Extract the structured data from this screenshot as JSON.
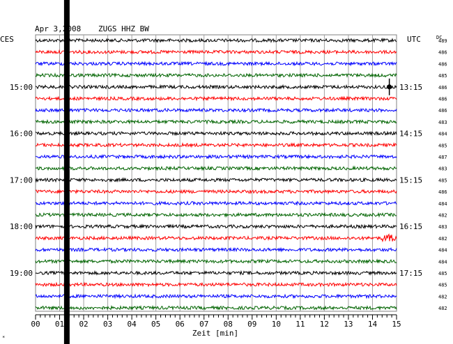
{
  "header": {
    "date": "Apr 3,2008",
    "station": "ZUGS HHZ BW",
    "left_zone": "CES",
    "right_zone": "UTC",
    "dc_label": "DC"
  },
  "footer": {
    "xlabel": "Zeit [min]",
    "corner_mark": "*"
  },
  "chart_data": {
    "type": "line",
    "title": "Apr 3,2008   ZUGS HHZ BW",
    "xlabel": "Zeit [min]",
    "xlim": [
      0,
      15
    ],
    "x_ticks": [
      "00",
      "01",
      "02",
      "03",
      "04",
      "05",
      "06",
      "07",
      "08",
      "09",
      "10",
      "11",
      "12",
      "13",
      "14",
      "15"
    ],
    "trace_count": 24,
    "trace_colors": [
      "#000000",
      "#ff0000",
      "#0000ff",
      "#006400"
    ],
    "left_time_labels": [
      {
        "trace": 4,
        "label": "15:00"
      },
      {
        "trace": 8,
        "label": "16:00"
      },
      {
        "trace": 12,
        "label": "17:00"
      },
      {
        "trace": 16,
        "label": "18:00"
      },
      {
        "trace": 20,
        "label": "19:00"
      }
    ],
    "right_time_labels": [
      {
        "trace": 4,
        "label": "13:15"
      },
      {
        "trace": 8,
        "label": "14:15"
      },
      {
        "trace": 12,
        "label": "15:15"
      },
      {
        "trace": 16,
        "label": "16:15"
      },
      {
        "trace": 20,
        "label": "17:15"
      }
    ],
    "dc_values": [
      "489",
      "486",
      "486",
      "485",
      "486",
      "486",
      "486",
      "483",
      "484",
      "485",
      "487",
      "483",
      "485",
      "486",
      "484",
      "482",
      "483",
      "482",
      "484",
      "484",
      "485",
      "485",
      "482",
      "482"
    ],
    "grid": true,
    "data_gap": {
      "x": 1.3
    },
    "event": {
      "trace": 4,
      "x": 14.7
    }
  }
}
